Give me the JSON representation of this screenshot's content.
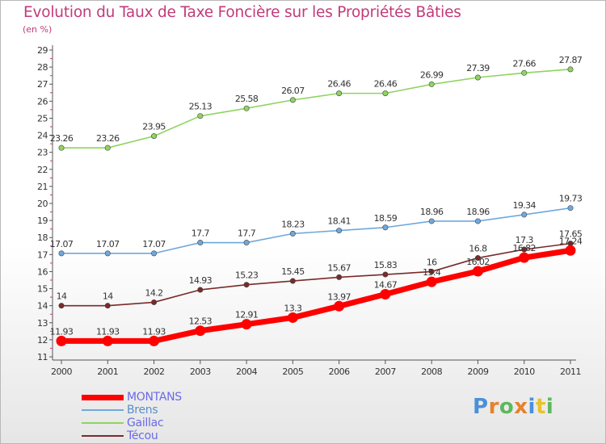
{
  "header": {
    "title": "Evolution du Taux de Taxe Foncière sur les Propriétés Bâties",
    "unit": "(en %)"
  },
  "logo": {
    "text": "Proxiti"
  },
  "chart_data": {
    "type": "line",
    "title": "Evolution du Taux de Taxe Foncière sur les Propriétés Bâties",
    "ylabel": "(en %)",
    "xlabel": "",
    "ylim": [
      11,
      29
    ],
    "yticks": [
      11,
      12,
      13,
      14,
      15,
      16,
      17,
      18,
      19,
      20,
      21,
      22,
      23,
      24,
      25,
      26,
      27,
      28,
      29
    ],
    "categories": [
      "2000",
      "2001",
      "2002",
      "2003",
      "2004",
      "2005",
      "2006",
      "2007",
      "2008",
      "2009",
      "2010",
      "2011"
    ],
    "grid": false,
    "legend_position": "bottom-left",
    "series": [
      {
        "name": "MONTANS",
        "color": "#ff0000",
        "labels": [
          "11.93",
          "11.93",
          "11.93",
          "12.53",
          "12.91",
          "13.3",
          "13.97",
          "14.67",
          "15.4",
          "16.02",
          "16.82",
          "17.24"
        ],
        "values": [
          11.93,
          11.93,
          11.93,
          12.53,
          12.91,
          13.3,
          13.97,
          14.67,
          15.4,
          16.02,
          16.82,
          17.24
        ]
      },
      {
        "name": "Brens",
        "color": "#6fa8dc",
        "labels": [
          "17.07",
          "17.07",
          "17.07",
          "17.7",
          "17.7",
          "18.23",
          "18.41",
          "18.59",
          "18.96",
          "18.96",
          "19.34",
          "19.73"
        ],
        "values": [
          17.07,
          17.07,
          17.07,
          17.7,
          17.7,
          18.23,
          18.41,
          18.59,
          18.96,
          18.96,
          19.34,
          19.73
        ]
      },
      {
        "name": "Gaillac",
        "color": "#8fd460",
        "labels": [
          "23.26",
          "23.26",
          "23.95",
          "25.13",
          "25.58",
          "26.07",
          "26.46",
          "26.46",
          "26.99",
          "27.39",
          "27.66",
          "27.87"
        ],
        "values": [
          23.26,
          23.26,
          23.95,
          25.13,
          25.58,
          26.07,
          26.46,
          26.46,
          26.99,
          27.39,
          27.66,
          27.87
        ]
      },
      {
        "name": "Técou",
        "color": "#7a2a2a",
        "labels": [
          "14",
          "14",
          "14.2",
          "14.93",
          "15.23",
          "15.45",
          "15.67",
          "15.83",
          "16",
          "16.8",
          "17.3",
          "17.65"
        ],
        "values": [
          14,
          14,
          14.2,
          14.93,
          15.23,
          15.45,
          15.67,
          15.83,
          16,
          16.8,
          17.3,
          17.65
        ]
      }
    ]
  }
}
